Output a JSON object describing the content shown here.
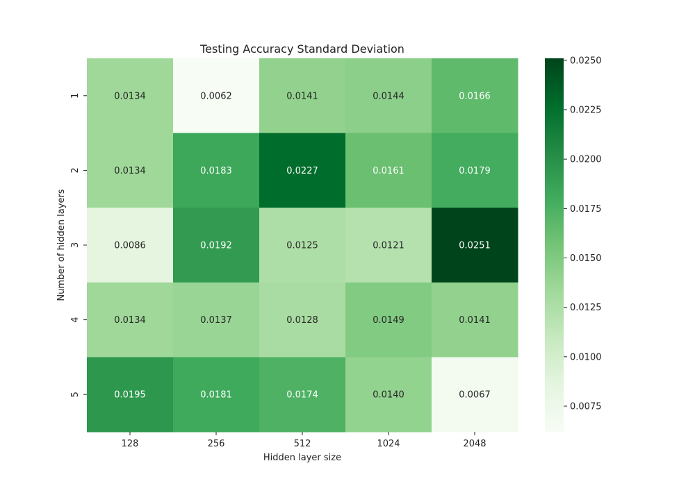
{
  "chart_data": {
    "type": "heatmap",
    "title": "Testing Accuracy Standard Deviation",
    "xlabel": "Hidden layer size",
    "ylabel": "Number of hidden layers",
    "x_categories": [
      "128",
      "256",
      "512",
      "1024",
      "2048"
    ],
    "y_categories": [
      "1",
      "2",
      "3",
      "4",
      "5"
    ],
    "values": [
      [
        0.0134,
        0.0062,
        0.0141,
        0.0144,
        0.0166
      ],
      [
        0.0134,
        0.0183,
        0.0227,
        0.0161,
        0.0179
      ],
      [
        0.0086,
        0.0192,
        0.0125,
        0.0121,
        0.0251
      ],
      [
        0.0134,
        0.0137,
        0.0128,
        0.0149,
        0.0141
      ],
      [
        0.0195,
        0.0181,
        0.0174,
        0.014,
        0.0067
      ]
    ],
    "value_labels": [
      [
        "0.0134",
        "0.0062",
        "0.0141",
        "0.0144",
        "0.0166"
      ],
      [
        "0.0134",
        "0.0183",
        "0.0227",
        "0.0161",
        "0.0179"
      ],
      [
        "0.0086",
        "0.0192",
        "0.0125",
        "0.0121",
        "0.0251"
      ],
      [
        "0.0134",
        "0.0137",
        "0.0128",
        "0.0149",
        "0.0141"
      ],
      [
        "0.0195",
        "0.0181",
        "0.0174",
        "0.0140",
        "0.0067"
      ]
    ],
    "colormap": "Greens",
    "color_range": [
      0.0062,
      0.0251
    ],
    "colorbar_ticks": [
      0.0075,
      0.01,
      0.0125,
      0.015,
      0.0175,
      0.02,
      0.0225,
      0.025
    ],
    "colorbar_tick_labels": [
      "0.0075",
      "0.0100",
      "0.0125",
      "0.0150",
      "0.0175",
      "0.0200",
      "0.0225",
      "0.0250"
    ],
    "legend_placement": "colorbar-right",
    "grid": false
  }
}
